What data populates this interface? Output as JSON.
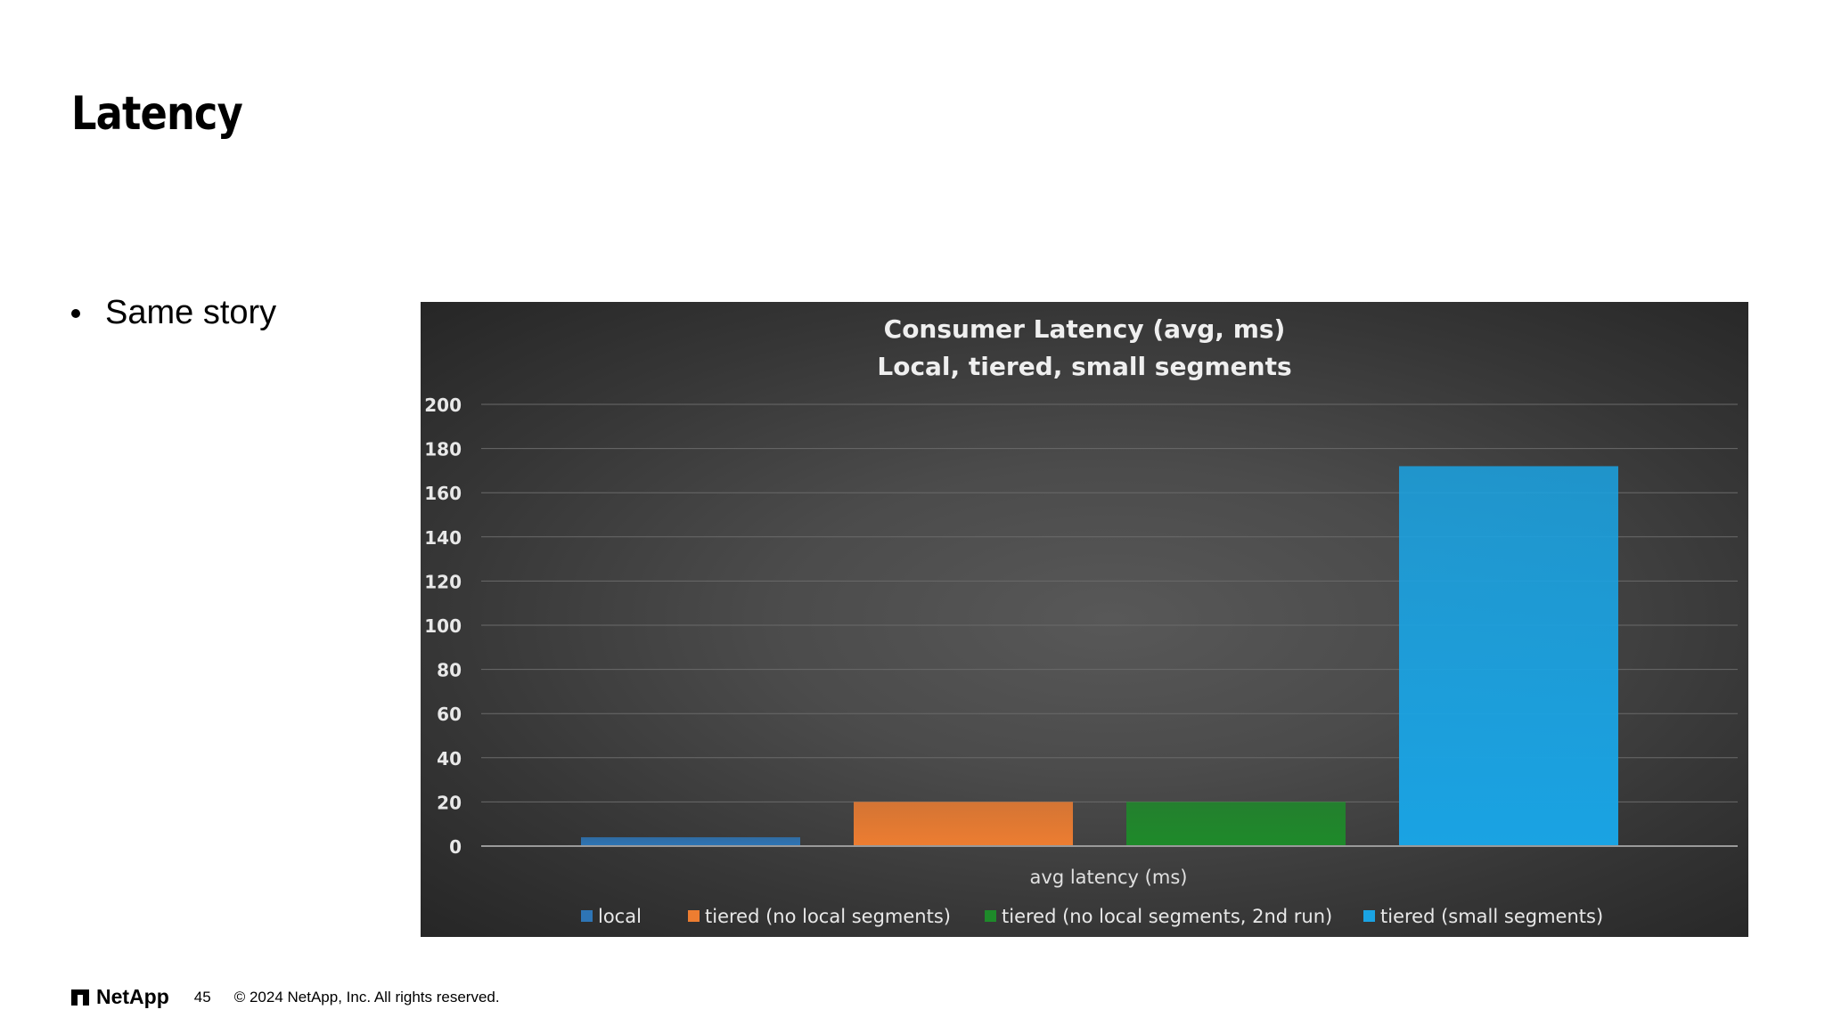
{
  "slide": {
    "title": "Latency",
    "bullets": [
      "Same story"
    ]
  },
  "footer": {
    "logo": "NetApp",
    "page_number": "45",
    "copyright": "© 2024 NetApp, Inc. All rights reserved."
  },
  "chart_data": {
    "type": "bar",
    "title": "Consumer Latency (avg, ms)",
    "subtitle": "Local, tiered, small segments",
    "xlabel": "avg latency (ms)",
    "ylabel": "",
    "ylim": [
      0,
      200
    ],
    "yticks": [
      0,
      20,
      40,
      60,
      80,
      100,
      120,
      140,
      160,
      180,
      200
    ],
    "grid": true,
    "legend_position": "bottom",
    "categories": [
      "avg latency (ms)"
    ],
    "series": [
      {
        "name": "local",
        "values": [
          4
        ],
        "color": "#2e75b6"
      },
      {
        "name": "tiered (no local segments)",
        "values": [
          20
        ],
        "color": "#ed7d31"
      },
      {
        "name": "tiered (no local segments, 2nd run)",
        "values": [
          20
        ],
        "color": "#1e8a2a"
      },
      {
        "name": "tiered (small segments)",
        "values": [
          172
        ],
        "color": "#1aa3e3"
      }
    ]
  }
}
